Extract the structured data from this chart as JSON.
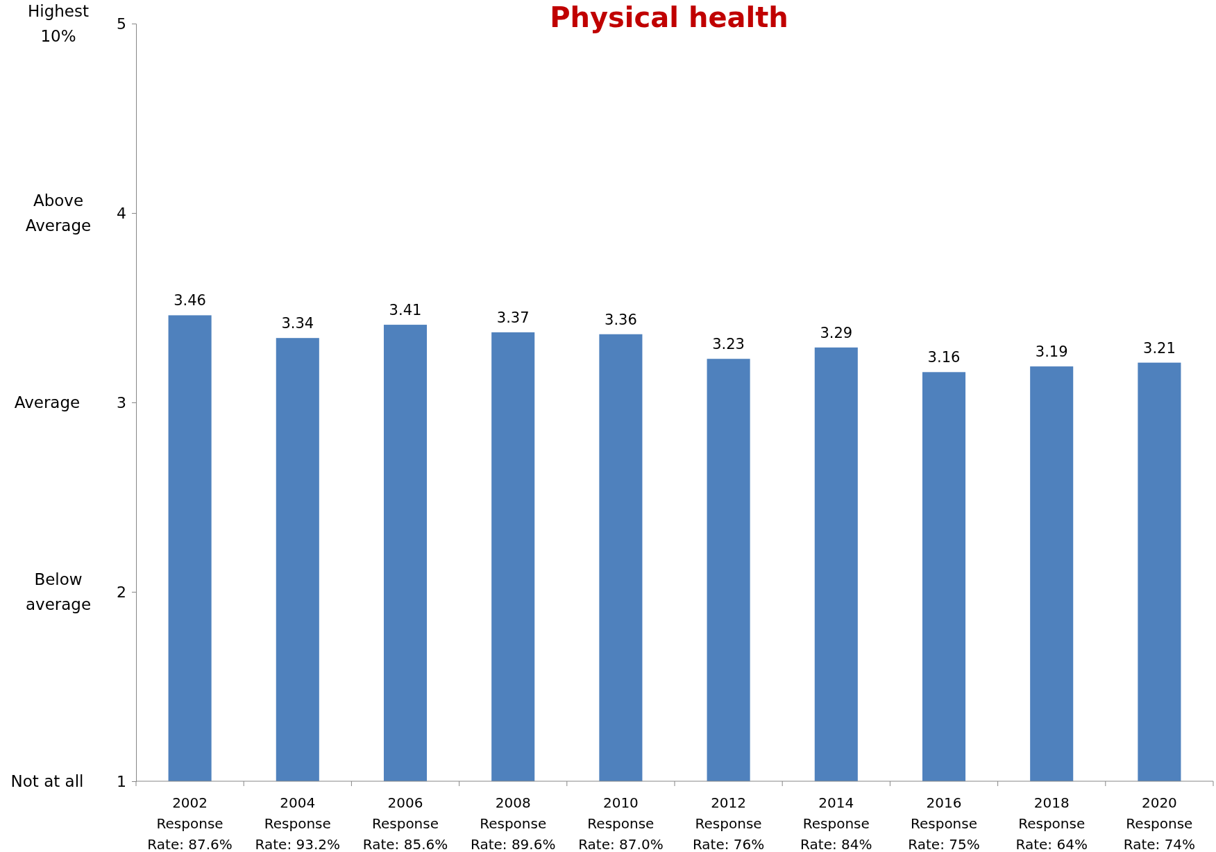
{
  "chart_data": {
    "type": "bar",
    "title": "Physical health",
    "categories": [
      "2002\nResponse\nRate: 87.6%",
      "2004\nResponse\nRate: 93.2%",
      "2006\nResponse\nRate: 85.6%",
      "2008\nResponse\nRate: 89.6%",
      "2010\nResponse\nRate: 87.0%",
      "2012\nResponse\nRate: 76%",
      "2014\nResponse\nRate: 84%",
      "2016\nResponse\nRate: 75%",
      "2018\nResponse\nRate: 64%",
      "2020\nResponse\nRate: 74%"
    ],
    "values": [
      3.46,
      3.34,
      3.41,
      3.37,
      3.36,
      3.23,
      3.29,
      3.16,
      3.19,
      3.21
    ],
    "color": "#4f81bd",
    "data_labels": true,
    "ylim": [
      1,
      5
    ],
    "yticks": [
      1,
      2,
      3,
      4,
      5
    ],
    "annotations": [
      "Not at all",
      "Below\naverage",
      "Average",
      "Above\nAverage",
      "Highest\n10%"
    ],
    "grid": false
  }
}
